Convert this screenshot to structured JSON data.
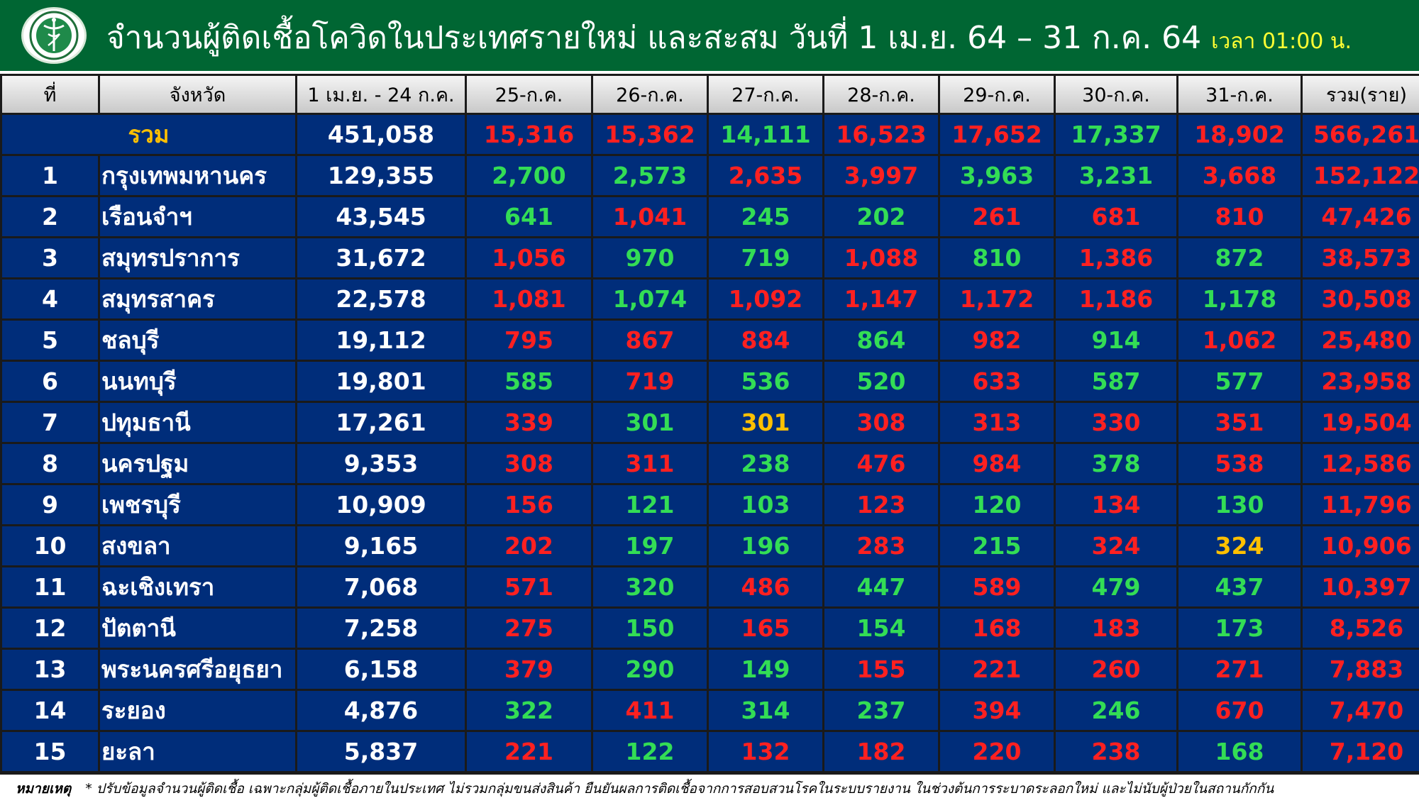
{
  "header": {
    "title": "จำนวนผู้ติดเชื้อโควิดในประเทศรายใหม่ และสะสม วันที่ 1 เม.ย. 64 – 31 ก.ค. 64",
    "time": "เวลา 01:00 น.",
    "logo_icon": "ministry-of-public-health-logo",
    "background_color": "#006633"
  },
  "table": {
    "columns": [
      "ที่",
      "จังหวัด",
      "1 เม.ย. - 24 ก.ค.",
      "25-ก.ค.",
      "26-ก.ค.",
      "27-ก.ค.",
      "28-ก.ค.",
      "29-ก.ค.",
      "30-ก.ค.",
      "31-ก.ค.",
      "รวม(ราย)"
    ],
    "total_row": {
      "label": "รวม",
      "cells": [
        {
          "v": "451,058",
          "c": "white"
        },
        {
          "v": "15,316",
          "c": "red"
        },
        {
          "v": "15,362",
          "c": "red"
        },
        {
          "v": "14,111",
          "c": "green"
        },
        {
          "v": "16,523",
          "c": "red"
        },
        {
          "v": "17,652",
          "c": "red"
        },
        {
          "v": "17,337",
          "c": "green"
        },
        {
          "v": "18,902",
          "c": "red"
        },
        {
          "v": "566,261",
          "c": "red"
        }
      ]
    },
    "rows": [
      {
        "no": "1",
        "province": "กรุงเทพมหานคร",
        "cells": [
          {
            "v": "129,355",
            "c": "white"
          },
          {
            "v": "2,700",
            "c": "green"
          },
          {
            "v": "2,573",
            "c": "green"
          },
          {
            "v": "2,635",
            "c": "red"
          },
          {
            "v": "3,997",
            "c": "red"
          },
          {
            "v": "3,963",
            "c": "green"
          },
          {
            "v": "3,231",
            "c": "green"
          },
          {
            "v": "3,668",
            "c": "red"
          },
          {
            "v": "152,122",
            "c": "red"
          }
        ]
      },
      {
        "no": "2",
        "province": "เรือนจำฯ",
        "cells": [
          {
            "v": "43,545",
            "c": "white"
          },
          {
            "v": "641",
            "c": "green"
          },
          {
            "v": "1,041",
            "c": "red"
          },
          {
            "v": "245",
            "c": "green"
          },
          {
            "v": "202",
            "c": "green"
          },
          {
            "v": "261",
            "c": "red"
          },
          {
            "v": "681",
            "c": "red"
          },
          {
            "v": "810",
            "c": "red"
          },
          {
            "v": "47,426",
            "c": "red"
          }
        ]
      },
      {
        "no": "3",
        "province": "สมุทรปราการ",
        "cells": [
          {
            "v": "31,672",
            "c": "white"
          },
          {
            "v": "1,056",
            "c": "red"
          },
          {
            "v": "970",
            "c": "green"
          },
          {
            "v": "719",
            "c": "green"
          },
          {
            "v": "1,088",
            "c": "red"
          },
          {
            "v": "810",
            "c": "green"
          },
          {
            "v": "1,386",
            "c": "red"
          },
          {
            "v": "872",
            "c": "green"
          },
          {
            "v": "38,573",
            "c": "red"
          }
        ]
      },
      {
        "no": "4",
        "province": "สมุทรสาคร",
        "cells": [
          {
            "v": "22,578",
            "c": "white"
          },
          {
            "v": "1,081",
            "c": "red"
          },
          {
            "v": "1,074",
            "c": "green"
          },
          {
            "v": "1,092",
            "c": "red"
          },
          {
            "v": "1,147",
            "c": "red"
          },
          {
            "v": "1,172",
            "c": "red"
          },
          {
            "v": "1,186",
            "c": "red"
          },
          {
            "v": "1,178",
            "c": "green"
          },
          {
            "v": "30,508",
            "c": "red"
          }
        ]
      },
      {
        "no": "5",
        "province": "ชลบุรี",
        "cells": [
          {
            "v": "19,112",
            "c": "white"
          },
          {
            "v": "795",
            "c": "red"
          },
          {
            "v": "867",
            "c": "red"
          },
          {
            "v": "884",
            "c": "red"
          },
          {
            "v": "864",
            "c": "green"
          },
          {
            "v": "982",
            "c": "red"
          },
          {
            "v": "914",
            "c": "green"
          },
          {
            "v": "1,062",
            "c": "red"
          },
          {
            "v": "25,480",
            "c": "red"
          }
        ]
      },
      {
        "no": "6",
        "province": "นนทบุรี",
        "cells": [
          {
            "v": "19,801",
            "c": "white"
          },
          {
            "v": "585",
            "c": "green"
          },
          {
            "v": "719",
            "c": "red"
          },
          {
            "v": "536",
            "c": "green"
          },
          {
            "v": "520",
            "c": "green"
          },
          {
            "v": "633",
            "c": "red"
          },
          {
            "v": "587",
            "c": "green"
          },
          {
            "v": "577",
            "c": "green"
          },
          {
            "v": "23,958",
            "c": "red"
          }
        ]
      },
      {
        "no": "7",
        "province": "ปทุมธานี",
        "cells": [
          {
            "v": "17,261",
            "c": "white"
          },
          {
            "v": "339",
            "c": "red"
          },
          {
            "v": "301",
            "c": "green"
          },
          {
            "v": "301",
            "c": "yellow"
          },
          {
            "v": "308",
            "c": "red"
          },
          {
            "v": "313",
            "c": "red"
          },
          {
            "v": "330",
            "c": "red"
          },
          {
            "v": "351",
            "c": "red"
          },
          {
            "v": "19,504",
            "c": "red"
          }
        ]
      },
      {
        "no": "8",
        "province": "นครปฐม",
        "cells": [
          {
            "v": "9,353",
            "c": "white"
          },
          {
            "v": "308",
            "c": "red"
          },
          {
            "v": "311",
            "c": "red"
          },
          {
            "v": "238",
            "c": "green"
          },
          {
            "v": "476",
            "c": "red"
          },
          {
            "v": "984",
            "c": "red"
          },
          {
            "v": "378",
            "c": "green"
          },
          {
            "v": "538",
            "c": "red"
          },
          {
            "v": "12,586",
            "c": "red"
          }
        ]
      },
      {
        "no": "9",
        "province": "เพชรบุรี",
        "cells": [
          {
            "v": "10,909",
            "c": "white"
          },
          {
            "v": "156",
            "c": "red"
          },
          {
            "v": "121",
            "c": "green"
          },
          {
            "v": "103",
            "c": "green"
          },
          {
            "v": "123",
            "c": "red"
          },
          {
            "v": "120",
            "c": "green"
          },
          {
            "v": "134",
            "c": "red"
          },
          {
            "v": "130",
            "c": "green"
          },
          {
            "v": "11,796",
            "c": "red"
          }
        ]
      },
      {
        "no": "10",
        "province": "สงขลา",
        "cells": [
          {
            "v": "9,165",
            "c": "white"
          },
          {
            "v": "202",
            "c": "red"
          },
          {
            "v": "197",
            "c": "green"
          },
          {
            "v": "196",
            "c": "green"
          },
          {
            "v": "283",
            "c": "red"
          },
          {
            "v": "215",
            "c": "green"
          },
          {
            "v": "324",
            "c": "red"
          },
          {
            "v": "324",
            "c": "yellow"
          },
          {
            "v": "10,906",
            "c": "red"
          }
        ]
      },
      {
        "no": "11",
        "province": "ฉะเชิงเทรา",
        "cells": [
          {
            "v": "7,068",
            "c": "white"
          },
          {
            "v": "571",
            "c": "red"
          },
          {
            "v": "320",
            "c": "green"
          },
          {
            "v": "486",
            "c": "red"
          },
          {
            "v": "447",
            "c": "green"
          },
          {
            "v": "589",
            "c": "red"
          },
          {
            "v": "479",
            "c": "green"
          },
          {
            "v": "437",
            "c": "green"
          },
          {
            "v": "10,397",
            "c": "red"
          }
        ]
      },
      {
        "no": "12",
        "province": "ปัตตานี",
        "cells": [
          {
            "v": "7,258",
            "c": "white"
          },
          {
            "v": "275",
            "c": "red"
          },
          {
            "v": "150",
            "c": "green"
          },
          {
            "v": "165",
            "c": "red"
          },
          {
            "v": "154",
            "c": "green"
          },
          {
            "v": "168",
            "c": "red"
          },
          {
            "v": "183",
            "c": "red"
          },
          {
            "v": "173",
            "c": "green"
          },
          {
            "v": "8,526",
            "c": "red"
          }
        ]
      },
      {
        "no": "13",
        "province": "พระนครศรีอยุธยา",
        "cells": [
          {
            "v": "6,158",
            "c": "white"
          },
          {
            "v": "379",
            "c": "red"
          },
          {
            "v": "290",
            "c": "green"
          },
          {
            "v": "149",
            "c": "green"
          },
          {
            "v": "155",
            "c": "red"
          },
          {
            "v": "221",
            "c": "red"
          },
          {
            "v": "260",
            "c": "red"
          },
          {
            "v": "271",
            "c": "red"
          },
          {
            "v": "7,883",
            "c": "red"
          }
        ]
      },
      {
        "no": "14",
        "province": "ระยอง",
        "cells": [
          {
            "v": "4,876",
            "c": "white"
          },
          {
            "v": "322",
            "c": "green"
          },
          {
            "v": "411",
            "c": "red"
          },
          {
            "v": "314",
            "c": "green"
          },
          {
            "v": "237",
            "c": "green"
          },
          {
            "v": "394",
            "c": "red"
          },
          {
            "v": "246",
            "c": "green"
          },
          {
            "v": "670",
            "c": "red"
          },
          {
            "v": "7,470",
            "c": "red"
          }
        ]
      },
      {
        "no": "15",
        "province": "ยะลา",
        "cells": [
          {
            "v": "5,837",
            "c": "white"
          },
          {
            "v": "221",
            "c": "red"
          },
          {
            "v": "122",
            "c": "green"
          },
          {
            "v": "132",
            "c": "red"
          },
          {
            "v": "182",
            "c": "red"
          },
          {
            "v": "220",
            "c": "red"
          },
          {
            "v": "238",
            "c": "red"
          },
          {
            "v": "168",
            "c": "green"
          },
          {
            "v": "7,120",
            "c": "red"
          }
        ]
      }
    ]
  },
  "footnote": {
    "label": "หมายเหตุ",
    "text": "* ปรับข้อมูลจำนวนผู้ติดเชื้อ เฉพาะกลุ่มผู้ติดเชื้อภายในประเทศ ไม่รวมกลุ่มขนส่งสินค้า ยืนยันผลการติดเชื้อจากการสอบสวนโรคในระบบรายงาน ในช่วงต้นการระบาดระลอกใหม่ และไม่นับผู้ป่วยในสถานกักกัน"
  },
  "colors": {
    "row_bg": "#002d7a",
    "red": "#ff2020",
    "green": "#33dd55",
    "yellow": "#ffc000"
  }
}
